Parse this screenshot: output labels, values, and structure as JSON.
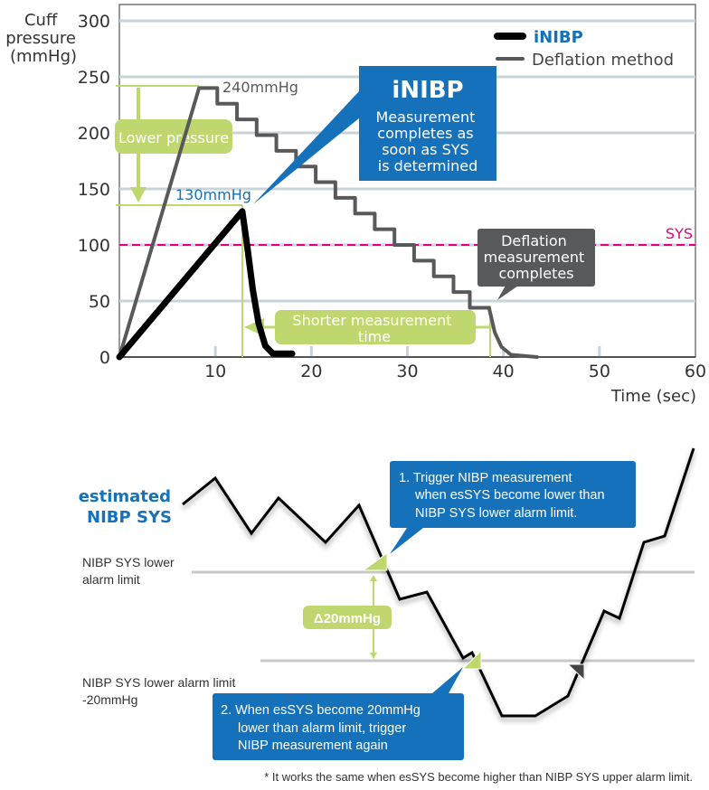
{
  "chart_data": {
    "type": "line",
    "ylabel_lines": [
      "Cuff",
      "pressure",
      "(mmHg)"
    ],
    "xlabel": "Time (sec)",
    "xlim": [
      0,
      60
    ],
    "ylim": [
      0,
      300
    ],
    "xticks": [
      10,
      20,
      30,
      40,
      50,
      60
    ],
    "yticks": [
      0,
      50,
      100,
      150,
      200,
      250,
      300
    ],
    "grid": true,
    "legend_position": "top-right",
    "series": [
      {
        "name": "iNIBP",
        "color": "#000000",
        "points": [
          [
            0,
            0
          ],
          [
            12.8,
            130
          ],
          [
            13.3,
            100
          ],
          [
            13.9,
            60
          ],
          [
            14.5,
            30
          ],
          [
            15.2,
            10
          ],
          [
            16,
            3
          ],
          [
            18,
            3
          ]
        ]
      },
      {
        "name": "Deflation method",
        "color": "#58595b",
        "points": [
          [
            0,
            0
          ],
          [
            8.3,
            240
          ],
          [
            10.2,
            240
          ],
          [
            10.2,
            226
          ],
          [
            12.25,
            226
          ],
          [
            12.25,
            212
          ],
          [
            14.3,
            212
          ],
          [
            14.3,
            198
          ],
          [
            16.35,
            198
          ],
          [
            16.35,
            184
          ],
          [
            18.4,
            184
          ],
          [
            18.4,
            170
          ],
          [
            20.45,
            170
          ],
          [
            20.45,
            156
          ],
          [
            22.5,
            156
          ],
          [
            22.5,
            142
          ],
          [
            24.55,
            142
          ],
          [
            24.55,
            128
          ],
          [
            26.6,
            128
          ],
          [
            26.6,
            114
          ],
          [
            28.65,
            114
          ],
          [
            28.65,
            100
          ],
          [
            30.7,
            100
          ],
          [
            30.7,
            86
          ],
          [
            32.75,
            86
          ],
          [
            32.75,
            72
          ],
          [
            34.8,
            72
          ],
          [
            34.8,
            58
          ],
          [
            36.5,
            58
          ],
          [
            36.5,
            44
          ],
          [
            38.5,
            44
          ],
          [
            39.1,
            22
          ],
          [
            39.8,
            9
          ],
          [
            40.8,
            2
          ],
          [
            43.5,
            0
          ]
        ]
      }
    ],
    "sys_line": {
      "label": "SYS",
      "value": 100,
      "color": "#e6007e"
    },
    "annotations": {
      "peak_deflation": "240mmHg",
      "peak_inibp": "130mmHg",
      "lower_pressure": "Lower pressure",
      "shorter_time": [
        "Shorter measurement",
        "time"
      ],
      "inibp_title": "iNIBP",
      "inibp_text": [
        "Measurement",
        "completes as",
        "soon as SYS",
        "is determined"
      ],
      "deflation_text": [
        "Deflation",
        "measurement",
        "completes"
      ]
    }
  },
  "lower": {
    "series_label": [
      "estimated",
      "NIBP SYS"
    ],
    "upper_limit_label": [
      "NIBP SYS lower",
      "alarm limit"
    ],
    "lower_limit_label": [
      "NIBP SYS lower alarm limit",
      "-20mmHg"
    ],
    "delta": "Δ20mmHg",
    "callout1": [
      "1. Trigger NIBP measurement",
      "when esSYS become lower than",
      "NIBP SYS lower alarm limit."
    ],
    "callout2": [
      "2. When esSYS become 20mmHg",
      "lower than alarm limit, trigger",
      "NIBP measurement again"
    ],
    "footnote": "* It works the same when esSYS become higher than NIBP SYS upper alarm limit."
  },
  "colors": {
    "blue": "#1571b9",
    "green": "#bed86f",
    "gray": "#58595b",
    "grid": "#c9d3da",
    "pink": "#e6007e"
  }
}
